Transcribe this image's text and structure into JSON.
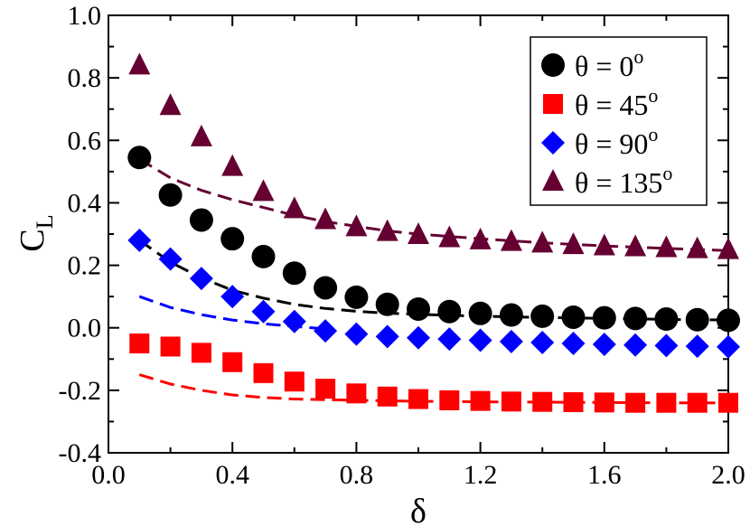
{
  "chart_data": {
    "type": "scatter",
    "title": "",
    "xlabel": "δ",
    "ylabel": "C",
    "ylabel_sub": "L",
    "xlim": [
      0.0,
      2.0
    ],
    "ylim": [
      -0.4,
      1.0
    ],
    "xticks": [
      0.0,
      0.4,
      0.8,
      1.2,
      1.6,
      2.0
    ],
    "xtick_labels": [
      "0.0",
      "0.4",
      "0.8",
      "1.2",
      "1.6",
      "2.0"
    ],
    "yticks": [
      -0.4,
      -0.2,
      0.0,
      0.2,
      0.4,
      0.6,
      0.8,
      1.0
    ],
    "ytick_labels": [
      "-0.4",
      "-0.2",
      "0.0",
      "0.2",
      "0.4",
      "0.6",
      "0.8",
      "1.0"
    ],
    "grid": false,
    "legend_position": "top-right",
    "x": [
      0.1,
      0.2,
      0.3,
      0.4,
      0.5,
      0.6,
      0.7,
      0.8,
      0.9,
      1.0,
      1.1,
      1.2,
      1.3,
      1.4,
      1.5,
      1.6,
      1.7,
      1.8,
      1.9,
      2.0
    ],
    "series": [
      {
        "name": "θ = 0",
        "superscript": "o",
        "marker": "circle",
        "color": "#000000",
        "values": [
          0.545,
          0.425,
          0.345,
          0.285,
          0.228,
          0.175,
          0.128,
          0.098,
          0.075,
          0.06,
          0.052,
          0.046,
          0.041,
          0.037,
          0.034,
          0.032,
          0.03,
          0.028,
          0.026,
          0.024
        ],
        "fit": [
          [
            0.1,
            0.28
          ],
          [
            0.2,
            0.21
          ],
          [
            0.3,
            0.16
          ],
          [
            0.4,
            0.12
          ],
          [
            0.5,
            0.095
          ],
          [
            0.6,
            0.075
          ],
          [
            0.7,
            0.062
          ],
          [
            0.8,
            0.053
          ],
          [
            0.9,
            0.047
          ],
          [
            1.0,
            0.043
          ],
          [
            1.2,
            0.037
          ],
          [
            1.4,
            0.033
          ],
          [
            1.6,
            0.03
          ],
          [
            1.8,
            0.027
          ],
          [
            2.0,
            0.025
          ]
        ]
      },
      {
        "name": "θ = 45",
        "superscript": "o",
        "marker": "square",
        "color": "#ff0000",
        "values": [
          -0.05,
          -0.06,
          -0.08,
          -0.11,
          -0.145,
          -0.172,
          -0.195,
          -0.21,
          -0.22,
          -0.228,
          -0.232,
          -0.234,
          -0.236,
          -0.237,
          -0.238,
          -0.239,
          -0.24,
          -0.24,
          -0.24,
          -0.24
        ],
        "fit": [
          [
            0.1,
            -0.15
          ],
          [
            0.2,
            -0.18
          ],
          [
            0.3,
            -0.2
          ],
          [
            0.4,
            -0.215
          ],
          [
            0.5,
            -0.223
          ],
          [
            0.6,
            -0.228
          ],
          [
            0.8,
            -0.232
          ],
          [
            1.0,
            -0.235
          ],
          [
            1.2,
            -0.237
          ],
          [
            1.4,
            -0.238
          ],
          [
            1.6,
            -0.239
          ],
          [
            1.8,
            -0.24
          ],
          [
            2.0,
            -0.24
          ]
        ]
      },
      {
        "name": "θ = 90",
        "superscript": "o",
        "marker": "diamond",
        "color": "#0000ff",
        "values": [
          0.28,
          0.22,
          0.158,
          0.1,
          0.052,
          0.02,
          -0.01,
          -0.02,
          -0.028,
          -0.032,
          -0.036,
          -0.04,
          -0.044,
          -0.047,
          -0.05,
          -0.053,
          -0.055,
          -0.057,
          -0.059,
          -0.061
        ],
        "fit": [
          [
            0.1,
            0.1
          ],
          [
            0.2,
            0.065
          ],
          [
            0.3,
            0.042
          ],
          [
            0.4,
            0.025
          ],
          [
            0.5,
            0.013
          ],
          [
            0.6,
            0.004
          ],
          [
            0.7,
            -0.003
          ]
        ]
      },
      {
        "name": "θ = 135",
        "superscript": "o",
        "marker": "triangle",
        "color": "#660033",
        "values": [
          0.84,
          0.71,
          0.61,
          0.515,
          0.435,
          0.38,
          0.345,
          0.322,
          0.307,
          0.297,
          0.287,
          0.28,
          0.275,
          0.27,
          0.265,
          0.261,
          0.258,
          0.255,
          0.252,
          0.249
        ],
        "fit": [
          [
            0.1,
            0.54
          ],
          [
            0.2,
            0.48
          ],
          [
            0.3,
            0.44
          ],
          [
            0.4,
            0.41
          ],
          [
            0.5,
            0.385
          ],
          [
            0.6,
            0.36
          ],
          [
            0.7,
            0.34
          ],
          [
            0.8,
            0.325
          ],
          [
            0.9,
            0.31
          ],
          [
            1.0,
            0.3
          ],
          [
            1.2,
            0.285
          ],
          [
            1.4,
            0.272
          ],
          [
            1.6,
            0.262
          ],
          [
            1.8,
            0.254
          ],
          [
            2.0,
            0.247
          ]
        ]
      }
    ]
  }
}
